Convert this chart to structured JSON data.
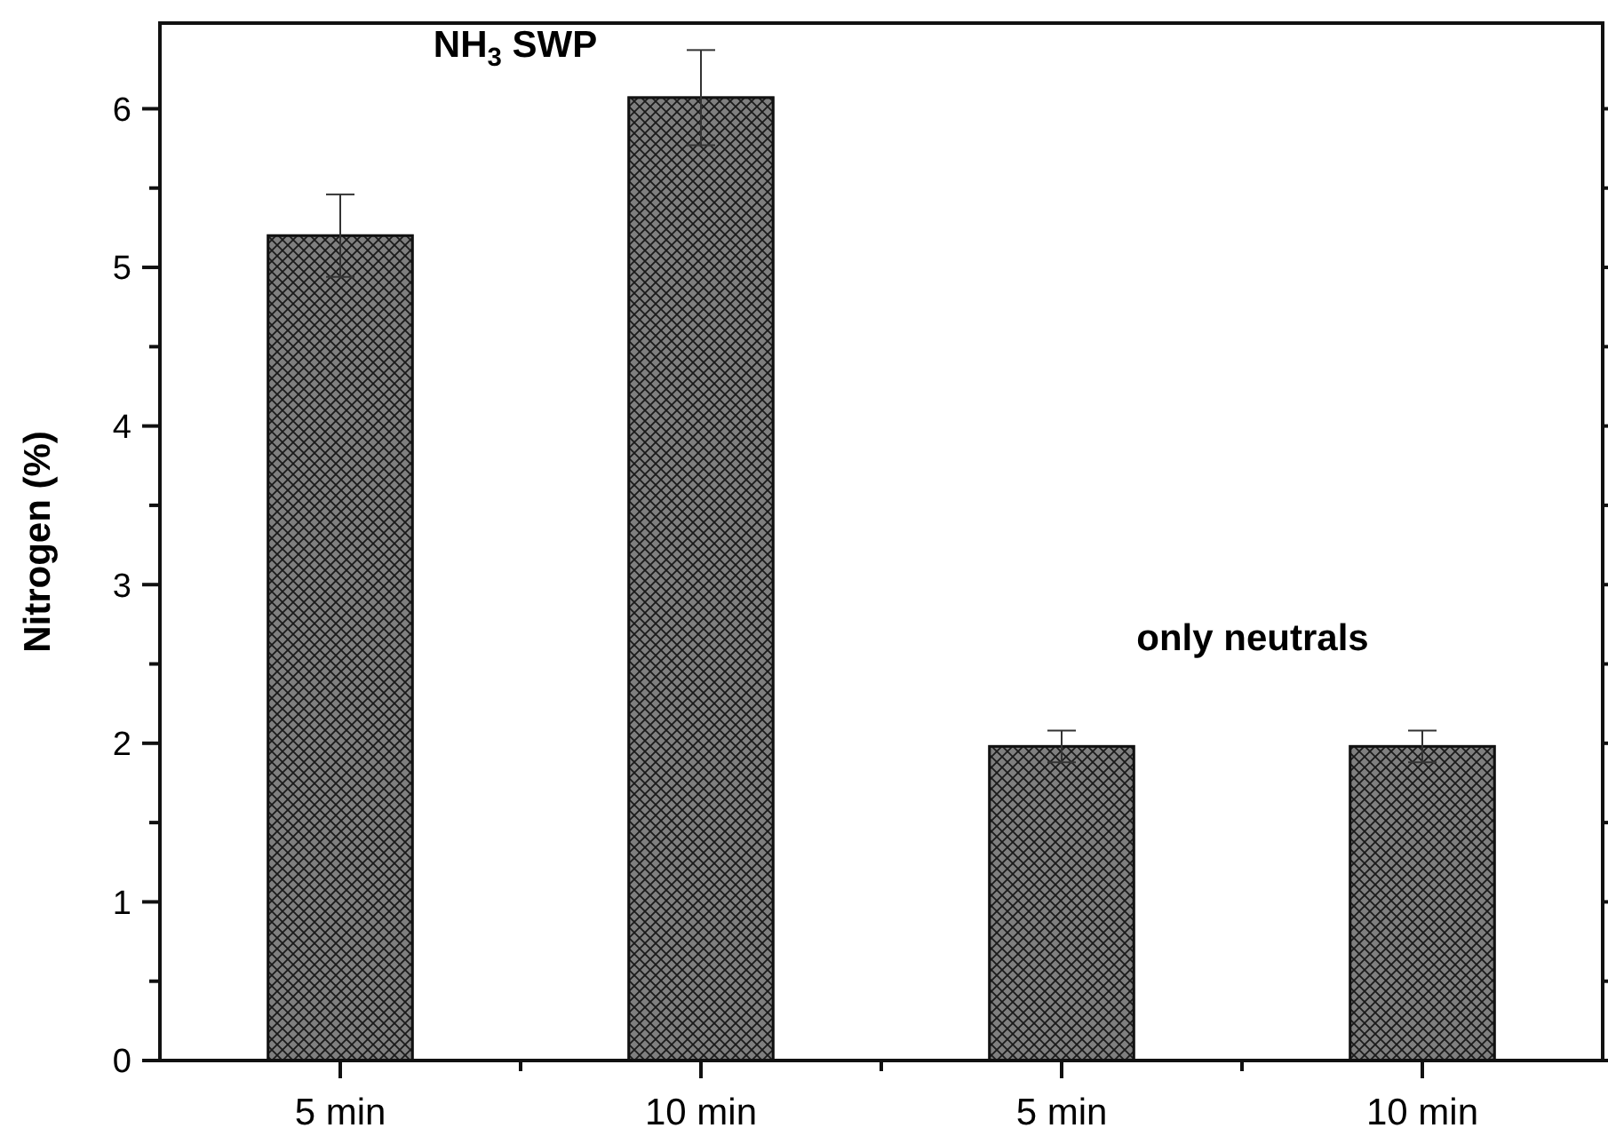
{
  "chart_data": {
    "type": "bar",
    "ylabel": "Nitrogen (%)",
    "categories": [
      "5 min",
      "10 min",
      "5 min",
      "10 min"
    ],
    "values": [
      5.2,
      6.07,
      1.98,
      1.98
    ],
    "errors": [
      0.26,
      0.3,
      0.1,
      0.1
    ],
    "color": "#7f7f7f",
    "ylim": [
      0,
      6.54
    ],
    "yticks": [
      0,
      {
        "value": 0.5,
        "label": null
      },
      1,
      {
        "value": 1.5,
        "label": null
      },
      2,
      {
        "value": 2.5,
        "label": null
      },
      3,
      {
        "value": 3.5,
        "label": null
      },
      4,
      {
        "value": 4.5,
        "label": null
      },
      5,
      {
        "value": 5.5,
        "label": null
      },
      6
    ],
    "annotations": [
      "NH$_{3}$ SWP",
      "only neutrals"
    ],
    "grid": false
  }
}
